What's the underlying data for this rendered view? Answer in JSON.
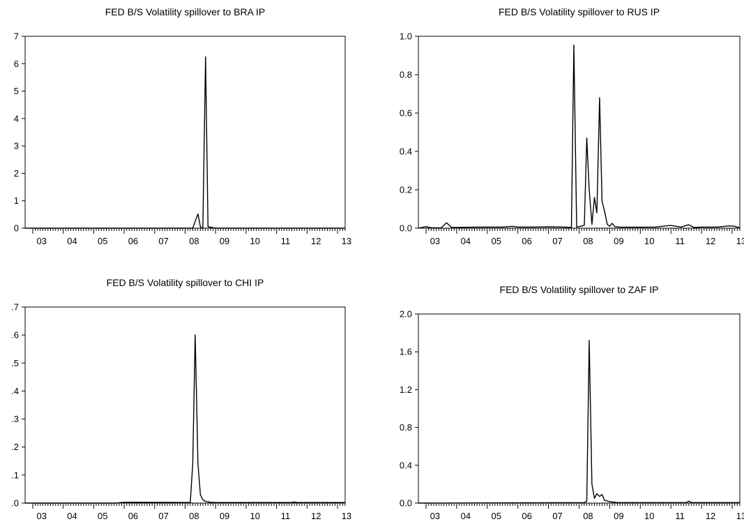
{
  "chart_data": [
    {
      "type": "line",
      "title": "FED B/S Volatility spillover to BRA IP",
      "xlabel": "",
      "ylabel": "",
      "ylim": [
        0,
        7
      ],
      "y_ticks": [
        "0",
        "1",
        "2",
        "3",
        "4",
        "5",
        "6",
        "7"
      ],
      "x_ticks": [
        "03",
        "04",
        "05",
        "06",
        "07",
        "08",
        "09",
        "10",
        "11",
        "12",
        "13"
      ],
      "xlim": [
        2002.75,
        2013.25
      ],
      "grid": false,
      "series": [
        {
          "x": [
            2002.75,
            2008.25,
            2008.33,
            2008.42,
            2008.5,
            2008.58,
            2008.67,
            2008.75,
            2009.0,
            2013.25
          ],
          "values": [
            0,
            0,
            0.25,
            0.52,
            0.05,
            0,
            6.25,
            0.05,
            0,
            0
          ]
        }
      ]
    },
    {
      "type": "line",
      "title": "FED B/S Volatility spillover to RUS IP",
      "xlabel": "",
      "ylabel": "",
      "ylim": [
        0,
        1.0
      ],
      "y_ticks": [
        "0.0",
        "0.2",
        "0.4",
        "0.6",
        "0.8",
        "1.0"
      ],
      "x_ticks": [
        "03",
        "04",
        "05",
        "06",
        "07",
        "08",
        "09",
        "10",
        "11",
        "12",
        "13"
      ],
      "xlim": [
        2002.75,
        2013.25
      ],
      "grid": false,
      "series": [
        {
          "x": [
            2002.75,
            2003.0,
            2003.17,
            2003.5,
            2003.67,
            2003.83,
            2004.0,
            2004.5,
            2005.0,
            2005.5,
            2005.83,
            2006.0,
            2006.5,
            2007.0,
            2007.5,
            2007.75,
            2007.83,
            2007.92,
            2008.0,
            2008.17,
            2008.25,
            2008.33,
            2008.42,
            2008.5,
            2008.58,
            2008.67,
            2008.75,
            2008.83,
            2008.92,
            2009.0,
            2009.08,
            2009.17,
            2009.33,
            2009.5,
            2010.0,
            2010.5,
            2010.83,
            2011.0,
            2011.33,
            2011.58,
            2011.75,
            2012.0,
            2012.5,
            2012.92,
            2013.08,
            2013.25
          ],
          "values": [
            0,
            0.008,
            0.002,
            0.002,
            0.028,
            0.004,
            0.004,
            0.005,
            0.006,
            0.006,
            0.01,
            0.006,
            0.006,
            0.007,
            0.006,
            0.004,
            0.955,
            0.005,
            0.008,
            0.015,
            0.47,
            0.2,
            0.02,
            0.16,
            0.08,
            0.68,
            0.14,
            0.09,
            0.02,
            0.01,
            0.025,
            0.008,
            0.005,
            0.005,
            0.005,
            0.006,
            0.012,
            0.014,
            0.006,
            0.018,
            0.004,
            0.006,
            0.006,
            0.012,
            0.01,
            0.002
          ]
        }
      ]
    },
    {
      "type": "line",
      "title": "FED B/S Volatility spillover to CHI IP",
      "xlabel": "",
      "ylabel": "",
      "ylim": [
        0,
        0.7
      ],
      "y_ticks": [
        ".0",
        ".1",
        ".2",
        ".3",
        ".4",
        ".5",
        ".6",
        ".7"
      ],
      "x_ticks": [
        "03",
        "04",
        "05",
        "06",
        "07",
        "08",
        "09",
        "10",
        "11",
        "12",
        "13"
      ],
      "xlim": [
        2002.75,
        2013.25
      ],
      "grid": false,
      "series": [
        {
          "x": [
            2002.75,
            2005.75,
            2006.0,
            2008.17,
            2008.25,
            2008.33,
            2008.42,
            2008.5,
            2008.58,
            2008.67,
            2008.83,
            2009.0,
            2009.5,
            2011.5,
            2011.58,
            2011.67,
            2013.25
          ],
          "values": [
            0,
            0,
            0.003,
            0.002,
            0.14,
            0.6,
            0.14,
            0.03,
            0.012,
            0.006,
            0.003,
            0.002,
            0.002,
            0.002,
            0.004,
            0.002,
            0.002
          ]
        }
      ]
    },
    {
      "type": "line",
      "title": "FED B/S Volatility spillover to ZAF IP",
      "xlabel": "",
      "ylabel": "",
      "ylim": [
        0,
        2.0
      ],
      "y_ticks": [
        "0.0",
        "0.4",
        "0.8",
        "1.2",
        "1.6",
        "2.0"
      ],
      "x_ticks": [
        "03",
        "04",
        "05",
        "06",
        "07",
        "08",
        "09",
        "10",
        "11",
        "12",
        "13"
      ],
      "xlim": [
        2002.75,
        2013.25
      ],
      "grid": false,
      "series": [
        {
          "x": [
            2002.75,
            2008.17,
            2008.25,
            2008.33,
            2008.42,
            2008.5,
            2008.58,
            2008.67,
            2008.75,
            2008.83,
            2009.0,
            2009.25,
            2011.5,
            2011.58,
            2011.67,
            2013.25
          ],
          "values": [
            0,
            0.005,
            0.02,
            1.72,
            0.2,
            0.05,
            0.1,
            0.07,
            0.09,
            0.03,
            0.015,
            0.005,
            0.005,
            0.02,
            0.005,
            0.005
          ]
        }
      ]
    }
  ]
}
